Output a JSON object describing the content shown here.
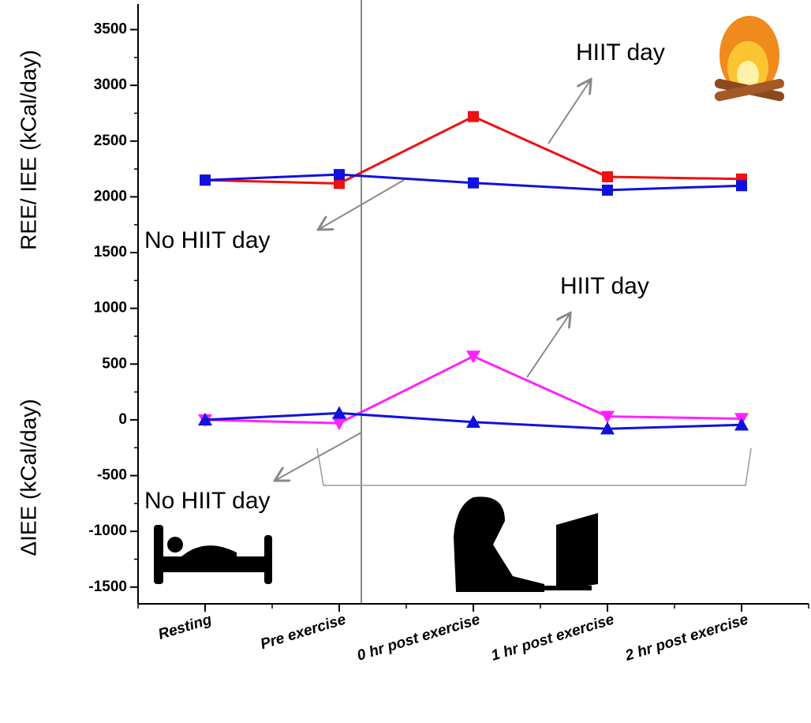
{
  "chart_data": {
    "type": "line",
    "ylabel": "REE/ IEE (kCal/day)",
    "ylabel2": "ΔIEE (kCal/day)",
    "categories": [
      "Resting",
      "Pre exercise",
      "0 hr post exercise",
      "1 hr post exercise",
      "2 hr post exercise"
    ],
    "series": [
      {
        "color": "#ee1111",
        "marker": "square",
        "values": [
          2150,
          2120,
          2720,
          2180,
          2160
        ]
      },
      {
        "color": "#1111dd",
        "marker": "square",
        "values": [
          2150,
          2200,
          2125,
          2060,
          2100
        ]
      },
      {
        "color": "#ff22ff",
        "marker": "triangle-down",
        "values": [
          0,
          -30,
          570,
          30,
          10
        ]
      },
      {
        "color": "#1111dd",
        "marker": "triangle-up",
        "values": [
          0,
          60,
          -20,
          -80,
          -45
        ]
      }
    ],
    "annotations": [
      "HIIT day",
      "No HIIT day",
      "HIIT day",
      "No HIIT day"
    ],
    "ylim": [
      -1650,
      3730
    ],
    "yticks": [
      -1500,
      -1000,
      -500,
      0,
      500,
      1000,
      1500,
      2000,
      2500,
      3000,
      3500
    ],
    "grid": false
  }
}
